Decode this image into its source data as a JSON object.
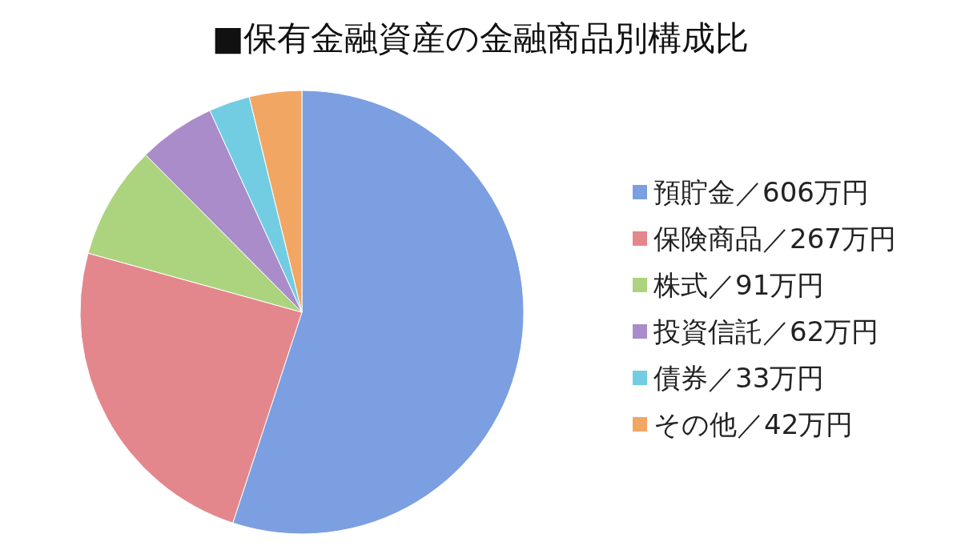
{
  "chart_data": {
    "type": "pie",
    "title": "■保有金融資産の金融商品別構成比",
    "categories": [
      "預貯金／606万円",
      "保険商品／267万円",
      "株式／91万円",
      "投資信託／62万円",
      "債券／33万円",
      "その他／42万円"
    ],
    "values": [
      606,
      267,
      91,
      62,
      33,
      42
    ],
    "colors": [
      "#7b9fe0",
      "#e3878c",
      "#acd47e",
      "#a98cc9",
      "#72cde2",
      "#f2a663"
    ],
    "legend": "right"
  }
}
